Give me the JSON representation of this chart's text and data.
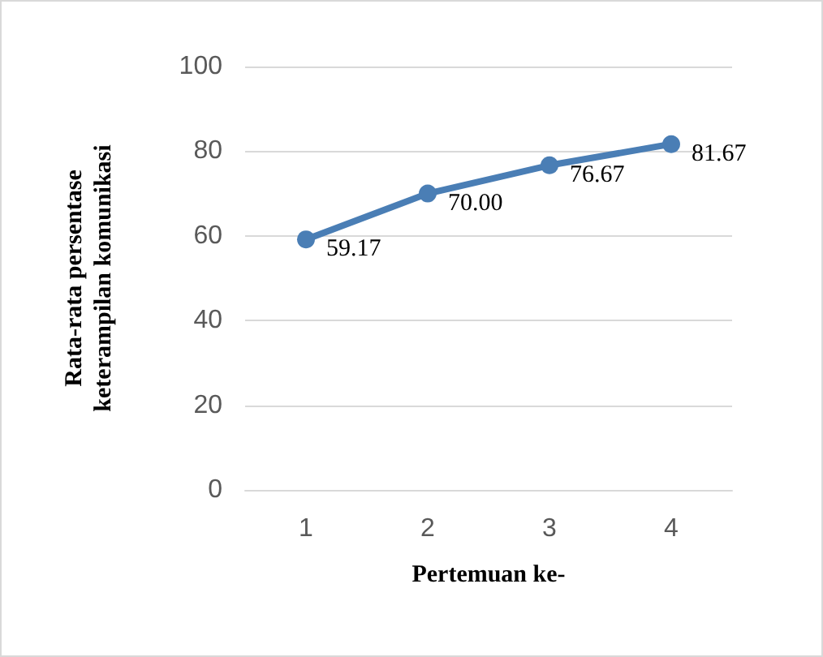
{
  "chart_data": {
    "type": "line",
    "xlabel": "Pertemuan ke-",
    "ylabel": "Rata-rata persentase\nketerampilan komunikasi",
    "categories": [
      "1",
      "2",
      "3",
      "4"
    ],
    "series": [
      {
        "color": "#4a7eb5",
        "values": [
          59.17,
          70.0,
          76.67,
          81.67
        ],
        "value_labels": [
          "59.17",
          "70.00",
          "76.67",
          "81.67"
        ]
      }
    ],
    "ylim": [
      0,
      100
    ],
    "yticks": [
      0,
      20,
      40,
      60,
      80,
      100
    ],
    "grid": "y",
    "marker": "circle",
    "line_style": "solid"
  }
}
